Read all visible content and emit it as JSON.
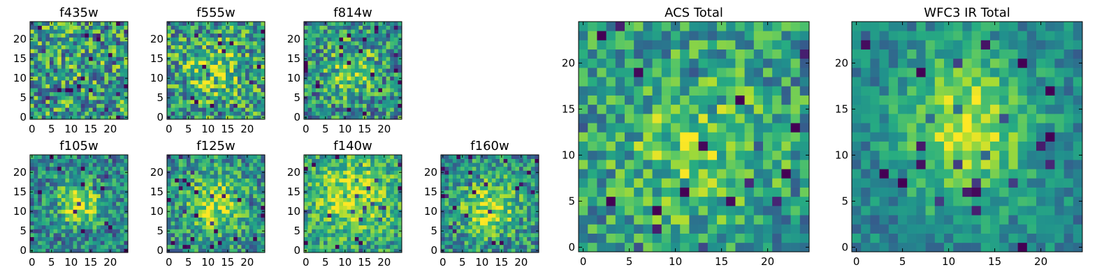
{
  "chart_data": [
    {
      "type": "heatmap",
      "title": "f435w",
      "grid": false,
      "colormap": "viridis",
      "shape": [
        25,
        25
      ],
      "xlim": [
        0,
        24
      ],
      "ylim": [
        0,
        24
      ],
      "xticks": [
        0,
        5,
        10,
        15,
        20
      ],
      "yticks": [
        0,
        5,
        10,
        15,
        20
      ],
      "signal": "noise-dominated, no clear central source"
    },
    {
      "type": "heatmap",
      "title": "f555w",
      "grid": false,
      "colormap": "viridis",
      "shape": [
        25,
        25
      ],
      "xlim": [
        0,
        24
      ],
      "ylim": [
        0,
        24
      ],
      "xticks": [
        0,
        5,
        10,
        15,
        20
      ],
      "yticks": [
        0,
        5,
        10,
        15,
        20
      ],
      "signal": "faint central source near (12, 12)"
    },
    {
      "type": "heatmap",
      "title": "f814w",
      "grid": false,
      "colormap": "viridis",
      "shape": [
        25,
        25
      ],
      "xlim": [
        0,
        24
      ],
      "ylim": [
        0,
        24
      ],
      "xticks": [
        0,
        5,
        10,
        15,
        20
      ],
      "yticks": [
        0,
        5,
        10,
        15,
        20
      ],
      "signal": "faint central source near (12, 12)"
    },
    {
      "type": "heatmap",
      "title": "f105w",
      "grid": false,
      "colormap": "viridis",
      "shape": [
        25,
        25
      ],
      "xlim": [
        0,
        24
      ],
      "ylim": [
        0,
        24
      ],
      "xticks": [
        0,
        5,
        10,
        15,
        20
      ],
      "yticks": [
        0,
        5,
        10,
        15,
        20
      ],
      "signal": "bright central source near (12, 12)"
    },
    {
      "type": "heatmap",
      "title": "f125w",
      "grid": false,
      "colormap": "viridis",
      "shape": [
        25,
        25
      ],
      "xlim": [
        0,
        24
      ],
      "ylim": [
        0,
        24
      ],
      "xticks": [
        0,
        5,
        10,
        15,
        20
      ],
      "yticks": [
        0,
        5,
        10,
        15,
        20
      ],
      "signal": "bright central source near (12, 12)"
    },
    {
      "type": "heatmap",
      "title": "f140w",
      "grid": false,
      "colormap": "viridis",
      "shape": [
        25,
        25
      ],
      "xlim": [
        0,
        24
      ],
      "ylim": [
        0,
        24
      ],
      "xticks": [
        0,
        5,
        10,
        15,
        20
      ],
      "yticks": [
        0,
        5,
        10,
        15,
        20
      ],
      "signal": "bright extended central source"
    },
    {
      "type": "heatmap",
      "title": "f160w",
      "grid": false,
      "colormap": "viridis",
      "shape": [
        25,
        25
      ],
      "xlim": [
        0,
        24
      ],
      "ylim": [
        0,
        24
      ],
      "xticks": [
        0,
        5,
        10,
        15,
        20
      ],
      "yticks": [
        0,
        5,
        10,
        15,
        20
      ],
      "signal": "bright central source near (12, 12)"
    },
    {
      "type": "heatmap",
      "title": "ACS Total",
      "grid": false,
      "colormap": "viridis",
      "shape": [
        25,
        25
      ],
      "xlim": [
        0,
        24
      ],
      "ylim": [
        0,
        24
      ],
      "xticks": [
        0,
        5,
        10,
        15,
        20
      ],
      "yticks": [
        0,
        5,
        10,
        15,
        20
      ],
      "signal": "moderate central source near (12, 11)"
    },
    {
      "type": "heatmap",
      "title": "WFC3 IR Total",
      "grid": false,
      "colormap": "viridis",
      "shape": [
        25,
        25
      ],
      "xlim": [
        0,
        24
      ],
      "ylim": [
        0,
        24
      ],
      "xticks": [
        0,
        5,
        10,
        15,
        20
      ],
      "yticks": [
        0,
        5,
        10,
        15,
        20
      ],
      "signal": "strong central source near (12, 13)"
    }
  ]
}
